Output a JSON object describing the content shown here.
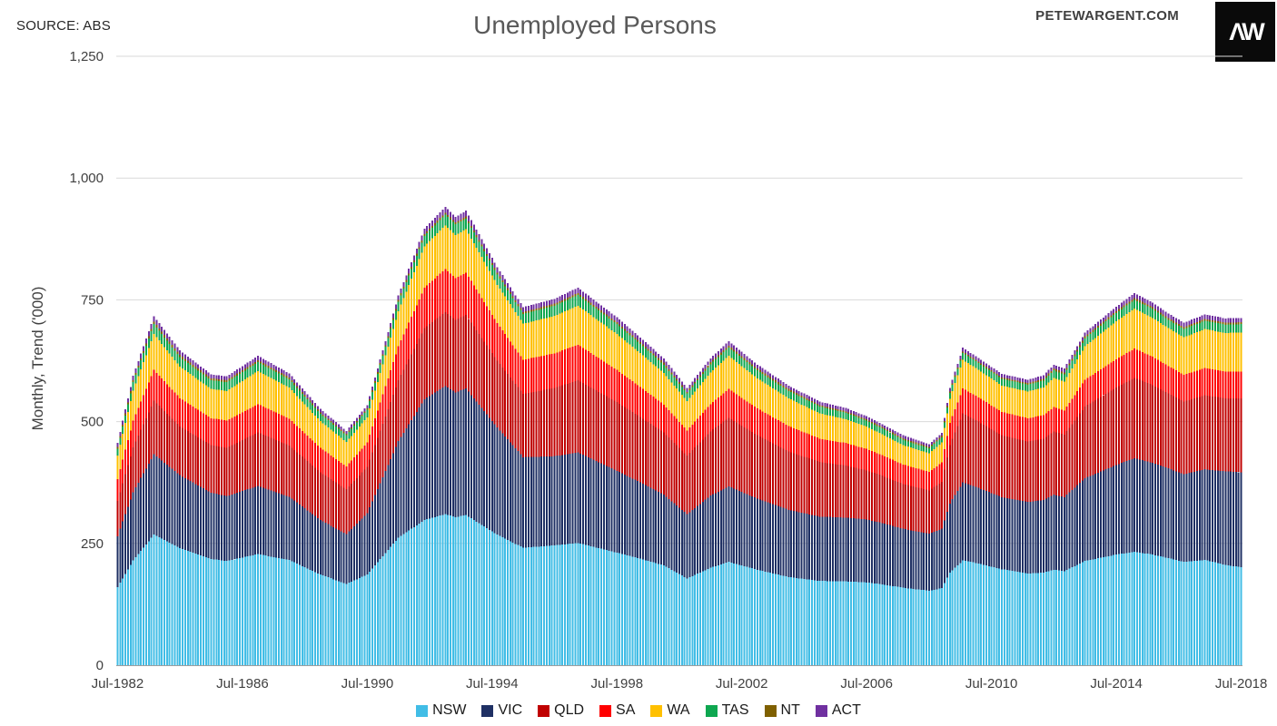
{
  "header": {
    "source": "SOURCE: ABS",
    "title": "Unemployed Persons",
    "watermark": "PETEWARGENT.COM",
    "logo_text": "ΛW"
  },
  "chart_data": {
    "type": "bar",
    "stacked": true,
    "title": "Unemployed Persons",
    "xlabel": "",
    "ylabel": "Monthly, Trend ('000)",
    "ylim": [
      0,
      1250
    ],
    "grid": "horizontal",
    "legend_position": "bottom",
    "y_tick_values": [
      0,
      250,
      500,
      750,
      1000,
      1250
    ],
    "y_tick_labels": [
      "0",
      "250",
      "500",
      "750",
      "1,000",
      "1,250"
    ],
    "months_total": 433,
    "x_tick_months": [
      0,
      48,
      96,
      144,
      192,
      240,
      288,
      336,
      384,
      432
    ],
    "x_tick_labels": [
      "Jul-1982",
      "Jul-1986",
      "Jul-1990",
      "Jul-1994",
      "Jul-1998",
      "Jul-2002",
      "Jul-2006",
      "Jul-2010",
      "Jul-2014",
      "Jul-2018"
    ],
    "keyframe_months": [
      0,
      6,
      14,
      24,
      36,
      42,
      54,
      66,
      78,
      88,
      96,
      108,
      118,
      126,
      130,
      134,
      146,
      156,
      168,
      177,
      192,
      200,
      210,
      219,
      228,
      235,
      246,
      258,
      270,
      280,
      288,
      294,
      302,
      312,
      317,
      320,
      325,
      330,
      340,
      350,
      356,
      360,
      364,
      372,
      384,
      391,
      398,
      404,
      410,
      418,
      426,
      432
    ],
    "series": [
      {
        "name": "NSW",
        "color": "#41BDE6",
        "values": [
          160,
          215,
          268,
          240,
          218,
          214,
          228,
          216,
          186,
          167,
          186,
          262,
          298,
          310,
          304,
          308,
          268,
          241,
          246,
          251,
          231,
          220,
          205,
          178,
          200,
          212,
          196,
          181,
          173,
          172,
          170,
          166,
          159,
          153,
          158,
          190,
          215,
          210,
          197,
          188,
          190,
          196,
          193,
          214,
          227,
          233,
          227,
          220,
          212,
          216,
          206,
          201
        ]
      },
      {
        "name": "VIC",
        "color": "#1F3064",
        "values": [
          105,
          140,
          165,
          150,
          136,
          133,
          140,
          130,
          112,
          102,
          126,
          198,
          248,
          263,
          256,
          260,
          220,
          186,
          183,
          186,
          168,
          158,
          145,
          132,
          148,
          155,
          146,
          138,
          132,
          131,
          129,
          126,
          121,
          117,
          122,
          142,
          160,
          156,
          148,
          147,
          149,
          154,
          152,
          170,
          184,
          192,
          188,
          184,
          180,
          186,
          192,
          195
        ]
      },
      {
        "name": "QLD",
        "color": "#C00000",
        "values": [
          72,
          92,
          110,
          100,
          98,
          99,
          110,
          105,
          98,
          92,
          95,
          125,
          146,
          152,
          149,
          151,
          137,
          130,
          140,
          148,
          141,
          135,
          128,
          120,
          132,
          141,
          130,
          120,
          112,
          107,
          101,
          97,
          92,
          89,
          96,
          120,
          142,
          137,
          127,
          124,
          126,
          130,
          128,
          147,
          159,
          165,
          160,
          154,
          149,
          152,
          150,
          152
        ]
      },
      {
        "name": "SA",
        "color": "#FF0000",
        "values": [
          45,
          55,
          63,
          58,
          55,
          56,
          58,
          55,
          50,
          47,
          50,
          70,
          83,
          88,
          86,
          87,
          77,
          70,
          71,
          73,
          66,
          62,
          57,
          52,
          56,
          59,
          55,
          52,
          48,
          46,
          44,
          42,
          40,
          38,
          40,
          45,
          51,
          50,
          48,
          48,
          48,
          50,
          50,
          55,
          58,
          60,
          58,
          56,
          55,
          56,
          55,
          55
        ]
      },
      {
        "name": "WA",
        "color": "#FFC000",
        "values": [
          48,
          62,
          74,
          65,
          60,
          61,
          68,
          64,
          55,
          50,
          52,
          72,
          85,
          90,
          88,
          89,
          79,
          74,
          77,
          80,
          74,
          70,
          65,
          60,
          65,
          68,
          62,
          57,
          52,
          49,
          46,
          43,
          40,
          38,
          41,
          50,
          59,
          57,
          54,
          55,
          57,
          60,
          59,
          69,
          78,
          82,
          80,
          78,
          77,
          80,
          79,
          80
        ]
      },
      {
        "name": "TAS",
        "color": "#0EA750",
        "values": [
          14,
          17,
          20,
          19,
          18,
          18,
          18,
          17,
          15,
          14,
          15,
          19,
          21,
          22,
          22,
          22,
          21,
          20,
          21,
          22,
          20,
          19,
          17,
          16,
          17,
          17,
          16,
          15,
          14,
          13,
          12,
          12,
          11,
          10,
          11,
          12,
          14,
          14,
          14,
          14,
          14,
          15,
          15,
          16,
          17,
          18,
          18,
          17,
          17,
          17,
          17,
          17
        ]
      },
      {
        "name": "NT",
        "color": "#7F6000",
        "values": [
          4,
          4,
          5,
          5,
          4,
          4,
          4,
          4,
          3,
          3,
          3,
          4,
          4,
          4,
          4,
          4,
          4,
          4,
          4,
          4,
          4,
          4,
          4,
          3,
          4,
          4,
          4,
          4,
          3,
          3,
          3,
          3,
          3,
          3,
          3,
          3,
          3,
          3,
          3,
          3,
          4,
          4,
          4,
          4,
          4,
          4,
          4,
          4,
          4,
          4,
          4,
          4
        ]
      },
      {
        "name": "ACT",
        "color": "#7030A0",
        "values": [
          8,
          9,
          11,
          9,
          8,
          8,
          9,
          8,
          7,
          6,
          7,
          9,
          11,
          12,
          11,
          12,
          11,
          10,
          10,
          11,
          10,
          9,
          9,
          8,
          8,
          9,
          8,
          7,
          7,
          7,
          6,
          6,
          6,
          6,
          6,
          7,
          8,
          7,
          7,
          7,
          7,
          8,
          8,
          8,
          9,
          10,
          9,
          9,
          9,
          9,
          9,
          9
        ]
      }
    ]
  }
}
